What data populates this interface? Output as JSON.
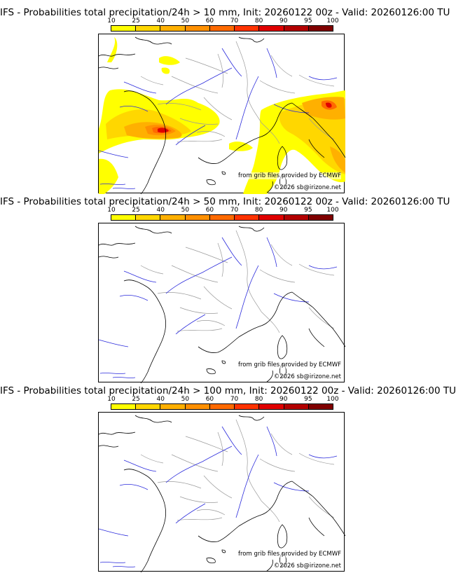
{
  "panels": [
    {
      "title": "IFS - Probabilities total precipitation/24h > 10 mm, Init: 20260122 00z - Valid: 20260126:00 TU",
      "source_note": "from grib files provided by ECMWF",
      "copyright": "©2026 sb@irizone.net",
      "precip_field": "strong"
    },
    {
      "title": "IFS - Probabilities total precipitation/24h > 50 mm, Init: 20260122 00z - Valid: 20260126:00 TU",
      "source_note": "from grib files provided by ECMWF",
      "copyright": "©2026 sb@irizone.net",
      "precip_field": "none"
    },
    {
      "title": "IFS - Probabilities total precipitation/24h > 100 mm, Init: 20260122 00z - Valid: 20260126:00 TU",
      "source_note": "from grib files provided by ECMWF",
      "copyright": "©2026 sb@irizone.net",
      "precip_field": "none"
    }
  ],
  "colorbar": {
    "ticks": [
      "10",
      "25",
      "40",
      "50",
      "60",
      "70",
      "80",
      "90",
      "95",
      "100"
    ],
    "colors": [
      "#ffff00",
      "#ffd700",
      "#ffb000",
      "#ff9000",
      "#ff6a00",
      "#ff3300",
      "#e00000",
      "#b30000",
      "#800000"
    ]
  },
  "map_colors": {
    "coast": "#000000",
    "borders": "#9a9a9a",
    "rivers": "#2b2bdc"
  }
}
